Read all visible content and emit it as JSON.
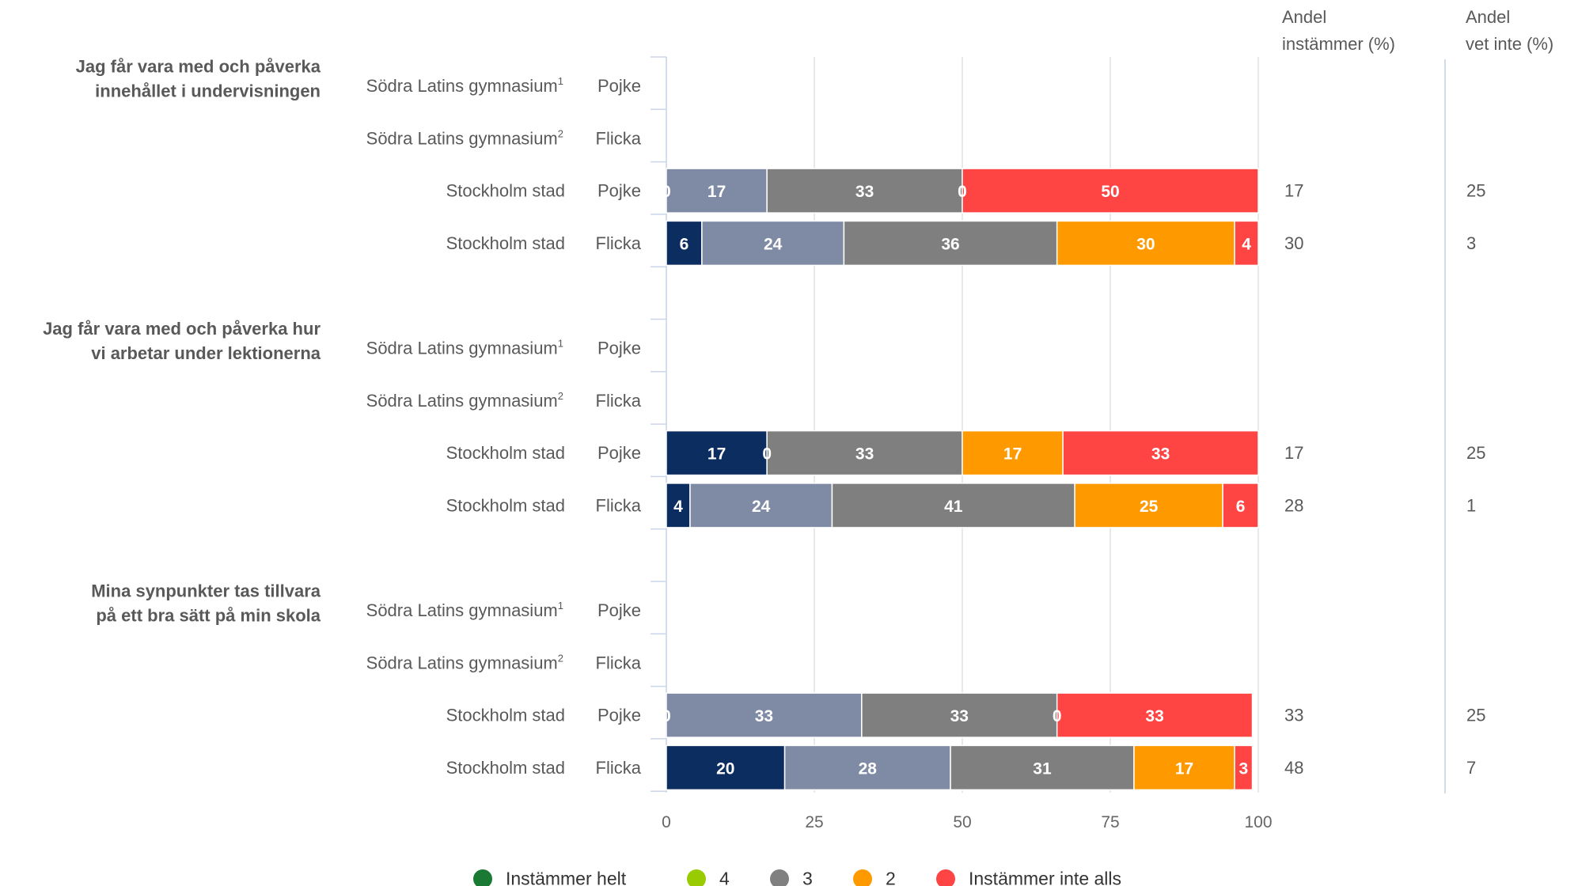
{
  "header": {
    "col1_line1": "Andel",
    "col1_line2": "instämmer (%)",
    "col2_line1": "Andel",
    "col2_line2": "vet inte (%)"
  },
  "colors": {
    "Instämmer helt": "#0c2d5f",
    "4": "#7f8ba5",
    "3": "#7f7f7f",
    "2": "#ff9900",
    "Instämmer inte alls": "#ff4444"
  },
  "legend": [
    {
      "label": "Instämmer helt",
      "color": "#1a7a34"
    },
    {
      "label": "4",
      "color": "#99cc00"
    },
    {
      "label": "3",
      "color": "#808080"
    },
    {
      "label": "2",
      "color": "#ff9900"
    },
    {
      "label": "Instämmer inte alls",
      "color": "#ff4444"
    }
  ],
  "chart_data": {
    "type": "bar",
    "orientation": "horizontal",
    "stacked": true,
    "xlim": [
      0,
      100
    ],
    "xticks": [
      0,
      25,
      50,
      75,
      100
    ],
    "legend_position": "bottom",
    "grid": true,
    "series_names": [
      "Instämmer helt",
      "4",
      "3",
      "2",
      "Instämmer inte alls"
    ],
    "groups": [
      {
        "question": [
          "Jag får vara med och påverka",
          "innehållet i undervisningen"
        ],
        "rows": [
          {
            "school": "Södra Latins gymnasium",
            "sup": "1",
            "gender": "Pojke",
            "values": null,
            "andel_instammer": "",
            "andel_vet_inte": ""
          },
          {
            "school": "Södra Latins gymnasium",
            "sup": "2",
            "gender": "Flicka",
            "values": null,
            "andel_instammer": "",
            "andel_vet_inte": ""
          },
          {
            "school": "Stockholm stad",
            "sup": "",
            "gender": "Pojke",
            "values": [
              0,
              17,
              33,
              0,
              50
            ],
            "andel_instammer": "17",
            "andel_vet_inte": "25"
          },
          {
            "school": "Stockholm stad",
            "sup": "",
            "gender": "Flicka",
            "values": [
              6,
              24,
              36,
              30,
              4
            ],
            "andel_instammer": "30",
            "andel_vet_inte": "3"
          }
        ]
      },
      {
        "question": [
          "Jag får vara med och påverka hur",
          "vi arbetar under lektionerna"
        ],
        "rows": [
          {
            "school": "Södra Latins gymnasium",
            "sup": "1",
            "gender": "Pojke",
            "values": null,
            "andel_instammer": "",
            "andel_vet_inte": ""
          },
          {
            "school": "Södra Latins gymnasium",
            "sup": "2",
            "gender": "Flicka",
            "values": null,
            "andel_instammer": "",
            "andel_vet_inte": ""
          },
          {
            "school": "Stockholm stad",
            "sup": "",
            "gender": "Pojke",
            "values": [
              17,
              0,
              33,
              17,
              33
            ],
            "andel_instammer": "17",
            "andel_vet_inte": "25"
          },
          {
            "school": "Stockholm stad",
            "sup": "",
            "gender": "Flicka",
            "values": [
              4,
              24,
              41,
              25,
              6
            ],
            "andel_instammer": "28",
            "andel_vet_inte": "1"
          }
        ]
      },
      {
        "question": [
          "Mina synpunkter tas tillvara",
          "på ett bra sätt på min skola"
        ],
        "rows": [
          {
            "school": "Södra Latins gymnasium",
            "sup": "1",
            "gender": "Pojke",
            "values": null,
            "andel_instammer": "",
            "andel_vet_inte": ""
          },
          {
            "school": "Södra Latins gymnasium",
            "sup": "2",
            "gender": "Flicka",
            "values": null,
            "andel_instammer": "",
            "andel_vet_inte": ""
          },
          {
            "school": "Stockholm stad",
            "sup": "",
            "gender": "Pojke",
            "values": [
              0,
              33,
              33,
              0,
              33
            ],
            "andel_instammer": "33",
            "andel_vet_inte": "25"
          },
          {
            "school": "Stockholm stad",
            "sup": "",
            "gender": "Flicka",
            "values": [
              20,
              28,
              31,
              17,
              3
            ],
            "andel_instammer": "48",
            "andel_vet_inte": "7"
          }
        ]
      }
    ]
  }
}
